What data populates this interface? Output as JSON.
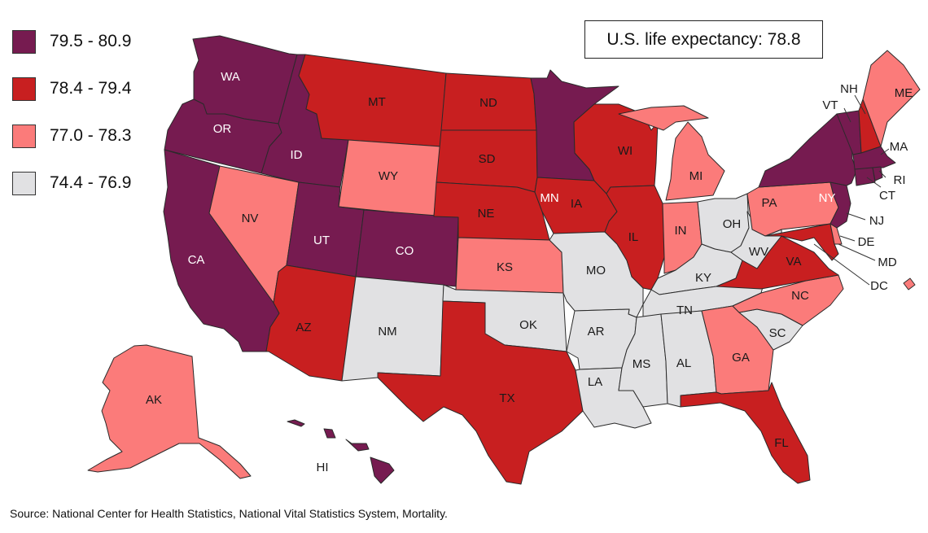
{
  "title": "U.S. life expectancy: 78.8",
  "source": "Source: National Center for Health Statistics, National Vital Statistics System, Mortality.",
  "legend": [
    {
      "label": "79.5 - 80.9",
      "color": "#761b50"
    },
    {
      "label": "78.4 - 79.4",
      "color": "#c81f20"
    },
    {
      "label": "77.0 - 78.3",
      "color": "#fb7b7a"
    },
    {
      "label": "74.4 - 76.9",
      "color": "#e1e1e3"
    }
  ],
  "states": {
    "WA": {
      "label": "WA",
      "bin": 0
    },
    "OR": {
      "label": "OR",
      "bin": 0
    },
    "CA": {
      "label": "CA",
      "bin": 0
    },
    "ID": {
      "label": "ID",
      "bin": 0
    },
    "UT": {
      "label": "UT",
      "bin": 0
    },
    "CO": {
      "label": "CO",
      "bin": 0
    },
    "MN": {
      "label": "MN",
      "bin": 0
    },
    "NY": {
      "label": "NY",
      "bin": 0
    },
    "VT": {
      "label": "VT",
      "bin": 0
    },
    "MA": {
      "label": "MA",
      "bin": 0
    },
    "CT": {
      "label": "CT",
      "bin": 0
    },
    "RI": {
      "label": "RI",
      "bin": 0
    },
    "NJ": {
      "label": "NJ",
      "bin": 0
    },
    "HI": {
      "label": "HI",
      "bin": 0
    },
    "MT": {
      "label": "MT",
      "bin": 1
    },
    "ND": {
      "label": "ND",
      "bin": 1
    },
    "SD": {
      "label": "SD",
      "bin": 1
    },
    "NE": {
      "label": "NE",
      "bin": 1
    },
    "IA": {
      "label": "IA",
      "bin": 1
    },
    "WI": {
      "label": "WI",
      "bin": 1
    },
    "IL": {
      "label": "IL",
      "bin": 1
    },
    "AZ": {
      "label": "AZ",
      "bin": 1
    },
    "TX": {
      "label": "TX",
      "bin": 1
    },
    "FL": {
      "label": "FL",
      "bin": 1
    },
    "VA": {
      "label": "VA",
      "bin": 1
    },
    "MD": {
      "label": "MD",
      "bin": 1
    },
    "NH": {
      "label": "NH",
      "bin": 1
    },
    "NV": {
      "label": "NV",
      "bin": 2
    },
    "WY": {
      "label": "WY",
      "bin": 2
    },
    "KS": {
      "label": "KS",
      "bin": 2
    },
    "MI": {
      "label": "MI",
      "bin": 2
    },
    "IN": {
      "label": "IN",
      "bin": 2
    },
    "PA": {
      "label": "PA",
      "bin": 2
    },
    "NC": {
      "label": "NC",
      "bin": 2
    },
    "GA": {
      "label": "GA",
      "bin": 2
    },
    "ME": {
      "label": "ME",
      "bin": 2
    },
    "AK": {
      "label": "AK",
      "bin": 2
    },
    "DE": {
      "label": "DE",
      "bin": 2
    },
    "DC": {
      "label": "DC",
      "bin": 2
    },
    "NM": {
      "label": "NM",
      "bin": 3
    },
    "OK": {
      "label": "OK",
      "bin": 3
    },
    "MO": {
      "label": "MO",
      "bin": 3
    },
    "AR": {
      "label": "AR",
      "bin": 3
    },
    "LA": {
      "label": "LA",
      "bin": 3
    },
    "MS": {
      "label": "MS",
      "bin": 3
    },
    "AL": {
      "label": "AL",
      "bin": 3
    },
    "TN": {
      "label": "TN",
      "bin": 3
    },
    "KY": {
      "label": "KY",
      "bin": 3
    },
    "OH": {
      "label": "OH",
      "bin": 3
    },
    "WV": {
      "label": "WV",
      "bin": 3
    },
    "SC": {
      "label": "SC",
      "bin": 3
    }
  }
}
